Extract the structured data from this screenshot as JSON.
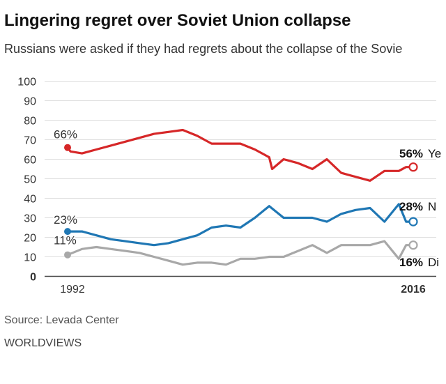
{
  "header": {
    "title": "Lingering regret over Soviet Union collapse",
    "subtitle": "Russians were asked if they had regrets about the collapse of the Sovie"
  },
  "footer": {
    "source": "Source: Levada Center",
    "brand": "WORLDVIEWS"
  },
  "colors": {
    "yes": "#d62728",
    "no": "#1f77b4",
    "dont_know": "#a8a8a8",
    "grid": "#dddddd"
  },
  "chart_data": {
    "type": "line",
    "title": "Lingering regret over Soviet Union collapse",
    "ylim": [
      0,
      100
    ],
    "y_ticks": [
      "0",
      "10",
      "20",
      "30",
      "40",
      "50",
      "60",
      "70",
      "80",
      "90",
      "100"
    ],
    "x_tick_labels": [
      "1992",
      "2016"
    ],
    "grid": true,
    "series": [
      {
        "key": "yes",
        "color": "#d62728",
        "start_label": "66%",
        "end_label": "56% Ye",
        "x": [
          1992,
          1992.2,
          1993,
          1994,
          1995,
          1996,
          1997,
          1998,
          1999,
          2000,
          2001,
          2002,
          2003,
          2004,
          2005,
          2006,
          2006.2,
          2007,
          2008,
          2009,
          2010,
          2011,
          2011.5,
          2012,
          2013,
          2014,
          2015,
          2015.5,
          2016
        ],
        "values": [
          66,
          64,
          63,
          65,
          67,
          69,
          71,
          73,
          74,
          75,
          72,
          68,
          68,
          68,
          65,
          61,
          55,
          60,
          58,
          55,
          60,
          53,
          52,
          51,
          49,
          54,
          54,
          56,
          56
        ]
      },
      {
        "key": "no",
        "color": "#1f77b4",
        "start_label": "23%",
        "end_label": "28% N",
        "x": [
          1992,
          1992.3,
          1993,
          1994,
          1995,
          1996,
          1997,
          1998,
          1999,
          2000,
          2001,
          2002,
          2003,
          2004,
          2005,
          2006,
          2007,
          2008,
          2009,
          2010,
          2011,
          2012,
          2013,
          2014,
          2015,
          2015.5,
          2016
        ],
        "values": [
          23,
          23,
          23,
          21,
          19,
          18,
          17,
          16,
          17,
          19,
          21,
          25,
          26,
          25,
          30,
          36,
          30,
          30,
          30,
          28,
          32,
          34,
          35,
          28,
          37,
          28,
          28
        ]
      },
      {
        "key": "dont_know",
        "color": "#a8a8a8",
        "start_label": "11%",
        "end_label": "16% Di",
        "x": [
          1992,
          1993,
          1994,
          1995,
          1996,
          1997,
          1998,
          1999,
          2000,
          2001,
          2002,
          2003,
          2004,
          2005,
          2006,
          2007,
          2008,
          2009,
          2010,
          2011,
          2012,
          2013,
          2014,
          2015,
          2015.5,
          2016
        ],
        "values": [
          11,
          14,
          15,
          14,
          13,
          12,
          10,
          8,
          6,
          7,
          7,
          6,
          9,
          9,
          10,
          10,
          13,
          16,
          12,
          16,
          16,
          16,
          18,
          9,
          16,
          16
        ]
      }
    ]
  }
}
